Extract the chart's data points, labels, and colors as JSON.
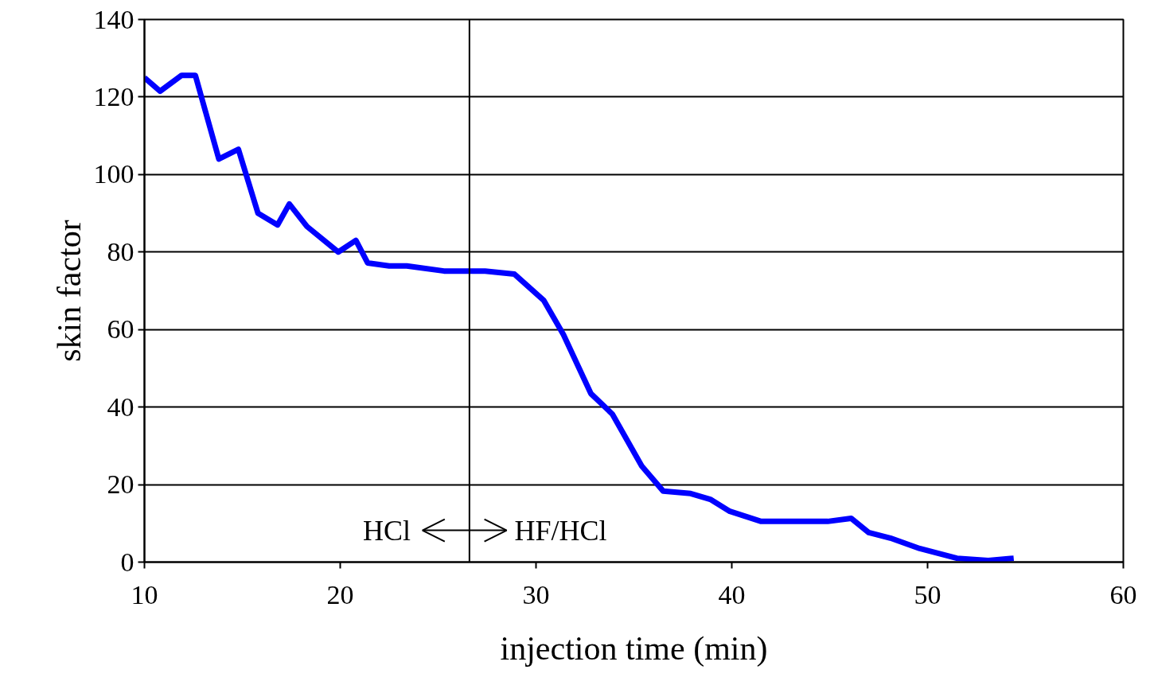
{
  "chart_data": {
    "type": "line",
    "xlabel": "injection time (min)",
    "ylabel": "skin factor",
    "x": [
      10,
      10.8,
      11.9,
      12.6,
      13.8,
      14.8,
      15.8,
      16.8,
      17.4,
      18.3,
      19.9,
      20.8,
      21.4,
      22.5,
      23.4,
      25.3,
      27.4,
      28.9,
      30.4,
      31.4,
      32.8,
      33.9,
      35.4,
      36.5,
      37.9,
      38.9,
      39.9,
      41.5,
      44.9,
      46.1,
      47.0,
      48.1,
      49.6,
      51.5,
      53.1,
      54.4
    ],
    "series": [
      {
        "color": "#0000ff",
        "values": [
          125,
          121.5,
          125.6,
          125.6,
          104,
          106.5,
          90,
          87,
          92.4,
          86.6,
          80,
          83,
          77.2,
          76.4,
          76.4,
          75.1,
          75.1,
          74.3,
          67.5,
          58.7,
          43.5,
          38.2,
          24.8,
          18.3,
          17.7,
          16.2,
          13.1,
          10.5,
          10.5,
          11.3,
          7.6,
          6.2,
          3.5,
          1,
          0.4,
          1
        ]
      }
    ],
    "xlim": [
      10,
      60
    ],
    "xticks": [
      10,
      20,
      30,
      40,
      50,
      60
    ],
    "ylim": [
      0,
      140
    ],
    "yticks": [
      0,
      20,
      40,
      60,
      80,
      100,
      120,
      140
    ],
    "grid": "y",
    "marker": "none",
    "line_style": "solid",
    "ref_lines": [
      {
        "axis": "x",
        "value": 26.6,
        "label": null,
        "color": "#000000"
      }
    ],
    "annotations": [
      "HCl",
      "HF/HCl"
    ]
  }
}
